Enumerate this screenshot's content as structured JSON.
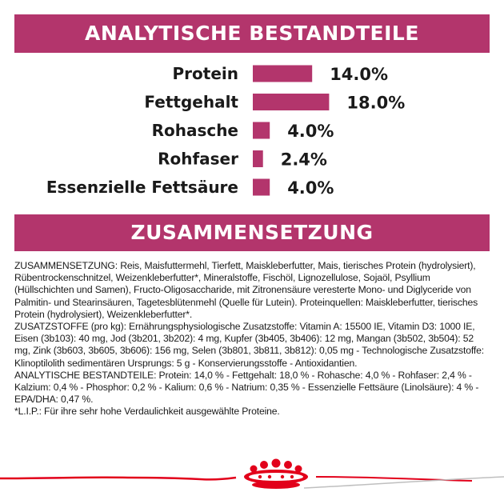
{
  "header": {
    "title": "ANALYTISCHE BESTANDTEILE"
  },
  "section2": {
    "title": "ZUSAMMENSETZUNG"
  },
  "chart_data": {
    "type": "bar",
    "orientation": "horizontal",
    "categories": [
      "Protein",
      "Fettgehalt",
      "Rohasche",
      "Rohfaser",
      "Essenzielle Fettsäure"
    ],
    "values": [
      14.0,
      18.0,
      4.0,
      2.4,
      4.0
    ],
    "value_labels": [
      "14.0%",
      "18.0%",
      "4.0%",
      "2.4%",
      "4.0%"
    ],
    "title": "ANALYTISCHE BESTANDTEILE",
    "bar_color": "#b3356c"
  },
  "composition": {
    "paragraphs": [
      "ZUSAMMENSETZUNG: Reis, Maisfuttermehl, Tierfett, Maiskleberfutter, Mais, tierisches Protein (hydrolysiert), Rübentrockenschnitzel, Weizenkleberfutter*, Mineralstoffe, Fischöl, Lignozellulose, Sojaöl, Psyllium (Hüllschichten und Samen), Fructo-Oligosaccharide, mit Zitronensäure veresterte Mono- und Diglyceride von Palmitin- und Stearinsäuren, Tagetesblütenmehl (Quelle für Lutein). Proteinquellen: Maiskleberfutter, tierisches Protein (hydrolysiert), Weizenkleberfutter*.",
      "ZUSATZSTOFFE (pro kg): Ernährungsphysiologische Zusatzstoffe: Vitamin A: 15500 IE, Vitamin D3: 1000 IE, Eisen (3b103): 40 mg, Jod (3b201, 3b202): 4 mg, Kupfer (3b405, 3b406): 12 mg, Mangan (3b502, 3b504): 52 mg, Zink (3b603, 3b605, 3b606): 156 mg, Selen (3b801, 3b811, 3b812): 0,05 mg - Technologische Zusatzstoffe: Klinoptilolith sedimentären Ursprungs: 5 g - Konservierungsstoffe - Antioxidantien.",
      "ANALYTISCHE BESTANDTEILE: Protein: 14,0 % - Fettgehalt: 18,0 % - Rohasche: 4,0 % - Rohfaser: 2,4 % - Kalzium: 0,4 % - Phosphor: 0,2 % - Kalium: 0,6 % - Natrium: 0,35 % - Essenzielle Fettsäure (Linolsäure): 4 % - EPA/DHA: 0,47 %.",
      "*L.I.P.: Für ihre sehr hohe Verdaulichkeit ausgewählte Proteine."
    ]
  },
  "brand": {
    "logo_icon": "crown-icon",
    "accent_color": "#e2001a"
  }
}
